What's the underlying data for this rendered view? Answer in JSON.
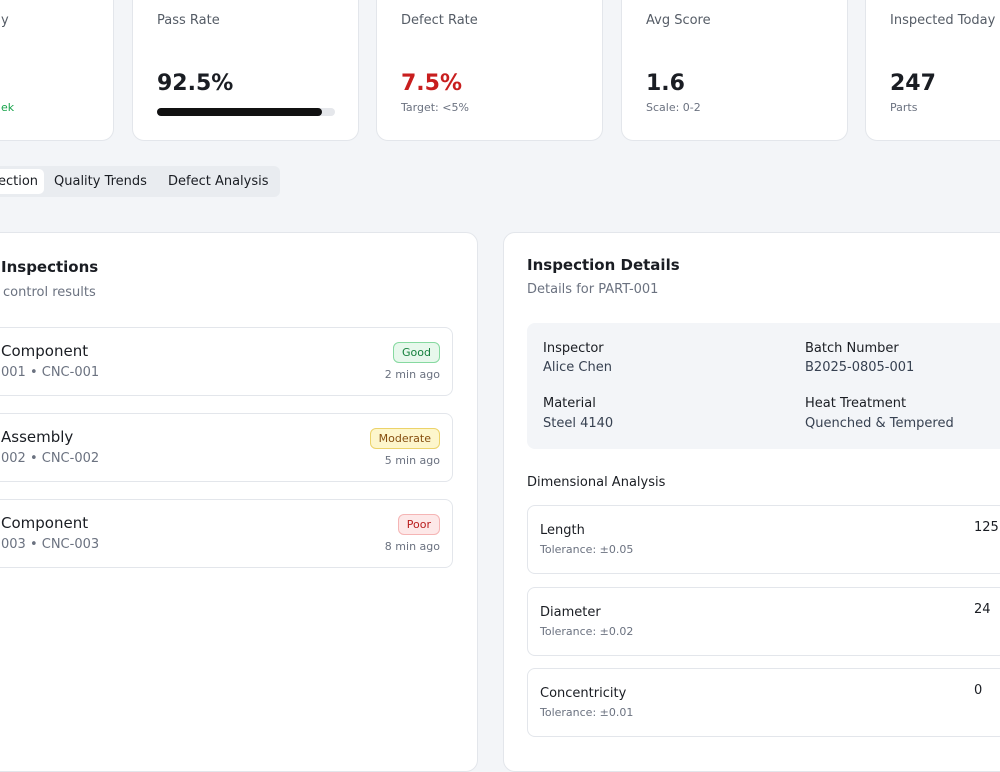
{
  "kpis": [
    {
      "label": "y",
      "sub": "ek"
    },
    {
      "label": "Pass Rate",
      "value": "92.5%",
      "progress": 92.5
    },
    {
      "label": "Defect Rate",
      "value": "7.5%",
      "sub": "Target: <5%"
    },
    {
      "label": "Avg Score",
      "value": "1.6",
      "sub": "Scale: 0-2"
    },
    {
      "label": "Inspected Today",
      "value": "247",
      "sub": "Parts"
    }
  ],
  "tabs": [
    "ection",
    "Quality Trends",
    "Defect Analysis"
  ],
  "inspections": {
    "title": "Inspections",
    "subtitle": "control results",
    "items": [
      {
        "name": "Component",
        "meta": "001 • CNC-001",
        "status": "Good",
        "time": "2 min ago"
      },
      {
        "name": "Assembly",
        "meta": "002 • CNC-002",
        "status": "Moderate",
        "time": "5 min ago"
      },
      {
        "name": "Component",
        "meta": "003 • CNC-003",
        "status": "Poor",
        "time": "8 min ago"
      }
    ]
  },
  "details": {
    "title": "Inspection Details",
    "subtitle": "Details for PART-001",
    "fields": [
      {
        "label": "Inspector",
        "value": "Alice Chen"
      },
      {
        "label": "Batch Number",
        "value": "B2025-0805-001"
      },
      {
        "label": "Material",
        "value": "Steel 4140"
      },
      {
        "label": "Heat Treatment",
        "value": "Quenched & Tempered"
      }
    ],
    "dimensional_title": "Dimensional Analysis",
    "dimensions": [
      {
        "name": "Length",
        "tolerance": "Tolerance: ±0.05",
        "value": "125."
      },
      {
        "name": "Diameter",
        "tolerance": "Tolerance: ±0.02",
        "value": "24"
      },
      {
        "name": "Concentricity",
        "tolerance": "Tolerance: ±0.01",
        "value": "0"
      }
    ]
  }
}
